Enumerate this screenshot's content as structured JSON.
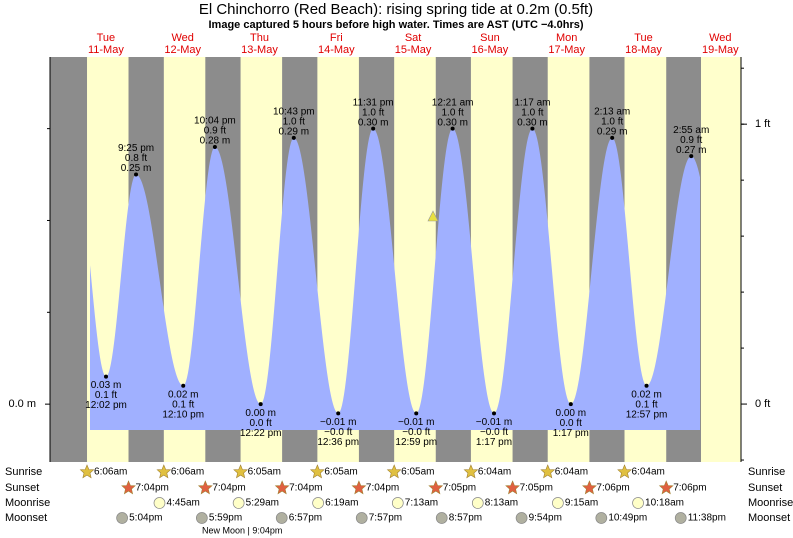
{
  "chart_data": {
    "type": "tide",
    "title": "El Chinchorro (Red Beach): rising  spring tide at 0.2m (0.5ft)",
    "subtitle": "Image captured 5 hours before high water. Times are AST (UTC −4.0hrs)",
    "days": [
      {
        "weekday": "Tue",
        "date": "11-May",
        "tides": [
          {
            "time": "12:02 pm",
            "m": {
              "value": 0.03,
              "label": "0.03 m"
            },
            "ft": {
              "value": 0.1,
              "label": "0.1 ft"
            }
          },
          {
            "time": "9:25 pm",
            "m": {
              "value": 0.25,
              "label": "0.25 m"
            },
            "ft": {
              "value": 0.8,
              "label": "0.8 ft"
            }
          }
        ]
      },
      {
        "weekday": "Wed",
        "date": "12-May",
        "tides": [
          {
            "time": "12:10 pm",
            "m": {
              "value": 0.02,
              "label": "0.02 m"
            },
            "ft": {
              "value": 0.1,
              "label": "0.1 ft"
            }
          },
          {
            "time": "10:04 pm",
            "m": {
              "value": 0.28,
              "label": "0.28 m"
            },
            "ft": {
              "value": 0.9,
              "label": "0.9 ft"
            }
          }
        ]
      },
      {
        "weekday": "Thu",
        "date": "13-May",
        "tides": [
          {
            "time": "12:22 pm",
            "m": {
              "value": 0.0,
              "label": "0.00 m"
            },
            "ft": {
              "value": 0.0,
              "label": "0.0 ft"
            }
          },
          {
            "time": "10:43 pm",
            "m": {
              "value": 0.29,
              "label": "0.29 m"
            },
            "ft": {
              "value": 1.0,
              "label": "1.0 ft"
            }
          }
        ]
      },
      {
        "weekday": "Fri",
        "date": "14-May",
        "tides": [
          {
            "time": "12:36 pm",
            "m": {
              "value": -0.01,
              "label": "−0.01 m"
            },
            "ft": {
              "value": 0,
              "label": "−0.0 ft"
            }
          },
          {
            "time": "11:31 pm",
            "m": {
              "value": 0.3,
              "label": "0.30 m"
            },
            "ft": {
              "value": 1.0,
              "label": "1.0 ft"
            }
          }
        ]
      },
      {
        "weekday": "Sat",
        "date": "15-May",
        "tides": [
          {
            "time": "12:59 pm",
            "m": {
              "value": -0.01,
              "label": "−0.01 m"
            },
            "ft": {
              "value": 0,
              "label": "−0.0 ft"
            }
          }
        ]
      },
      {
        "weekday": "Sun",
        "date": "16-May",
        "tides": [
          {
            "time": "12:21 am",
            "m": {
              "value": 0.3,
              "label": "0.30 m"
            },
            "ft": {
              "value": 1.0,
              "label": "1.0 ft"
            }
          },
          {
            "time": "1:17 pm",
            "m": {
              "value": -0.01,
              "label": "−0.01 m"
            },
            "ft": {
              "value": 0,
              "label": "−0.0 ft"
            }
          }
        ]
      },
      {
        "weekday": "Mon",
        "date": "17-May",
        "tides": [
          {
            "time": "1:17 am",
            "m": {
              "value": 0.3,
              "label": "0.30 m"
            },
            "ft": {
              "value": 1.0,
              "label": "1.0 ft"
            }
          },
          {
            "time": "1:17 pm",
            "m": {
              "value": 0.0,
              "label": "0.00 m"
            },
            "ft": {
              "value": 0.0,
              "label": "0.0 ft"
            }
          }
        ]
      },
      {
        "weekday": "Tue",
        "date": "18-May",
        "tides": [
          {
            "time": "2:13 am",
            "m": {
              "value": 0.29,
              "label": "0.29 m"
            },
            "ft": {
              "value": 1.0,
              "label": "1.0 ft"
            }
          },
          {
            "time": "12:57 pm",
            "m": {
              "value": 0.02,
              "label": "0.02 m"
            },
            "ft": {
              "value": 0.1,
              "label": "0.1 ft"
            }
          }
        ]
      },
      {
        "weekday": "Wed",
        "date": "19-May",
        "tides": [
          {
            "time": "2:55 am",
            "m": {
              "value": 0.27,
              "label": "0.27 m"
            },
            "ft": {
              "value": 0.9,
              "label": "0.9 ft"
            }
          }
        ]
      }
    ],
    "ylim": [
      -0.063,
      0.378
    ],
    "yticks": [
      {
        "value": 0,
        "label": "0.0 m"
      }
    ],
    "y2lim": [
      -0.207,
      1.24
    ],
    "y2ticks": [
      {
        "value": 0,
        "label": "0 ft"
      },
      {
        "value": 1,
        "label": "1 ft"
      }
    ],
    "rows": [
      {
        "name": "Sunrise",
        "times": [
          "6:06am",
          "6:06am",
          "6:05am",
          "6:05am",
          "6:05am",
          "6:04am",
          "6:04am",
          "6:04am"
        ]
      },
      {
        "name": "Sunset",
        "times": [
          "7:04pm",
          "7:04pm",
          "7:04pm",
          "7:04pm",
          "7:05pm",
          "7:05pm",
          "7:06pm",
          "7:06pm"
        ]
      },
      {
        "name": "Moonrise",
        "times": [
          null,
          "4:45am",
          "5:29am",
          "6:19am",
          "7:13am",
          "8:13am",
          "9:15am",
          "10:18am"
        ]
      },
      {
        "name": "Moonset",
        "times": [
          "5:04pm",
          "5:59pm",
          "6:57pm",
          "7:57pm",
          "8:57pm",
          "9:54pm",
          "10:49pm",
          "11:38pm"
        ]
      }
    ],
    "moon_phase": "New Moon | 9:04pm"
  }
}
